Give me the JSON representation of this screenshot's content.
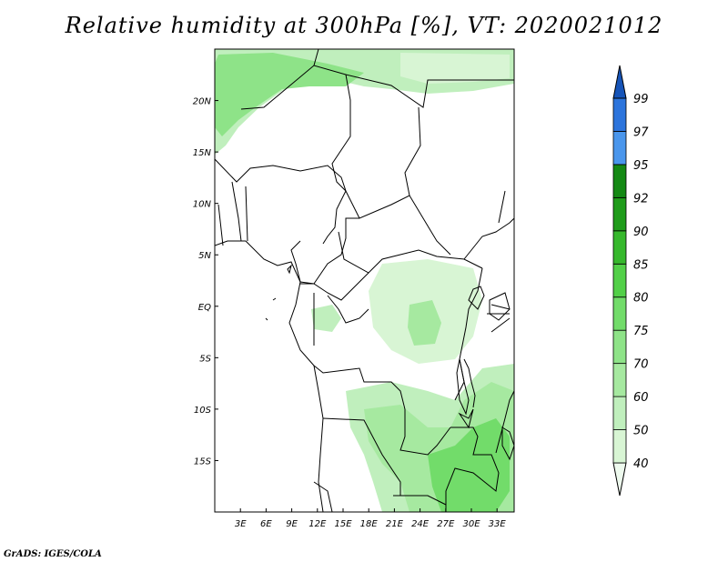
{
  "title": "Relative humidity at 300hPa [%], VT: 2020021012",
  "credit": "GrADS: IGES/COLA",
  "map": {
    "lon_range": [
      0,
      35
    ],
    "lat_range": [
      -20,
      25
    ],
    "lon_ticks": [
      3,
      6,
      9,
      12,
      15,
      18,
      21,
      24,
      27,
      30,
      33
    ],
    "lon_tick_labels": [
      "3E",
      "6E",
      "9E",
      "12E",
      "15E",
      "18E",
      "21E",
      "24E",
      "27E",
      "30E",
      "33E"
    ],
    "lat_ticks": [
      20,
      15,
      10,
      5,
      0,
      -5,
      -10,
      -15
    ],
    "lat_tick_labels": [
      "20N",
      "15N",
      "10N",
      "5N",
      "EQ",
      "5S",
      "10S",
      "15S"
    ]
  },
  "colorbar": {
    "levels": [
      40,
      50,
      60,
      70,
      75,
      80,
      85,
      90,
      92,
      95,
      97,
      99
    ],
    "level_labels": [
      "40",
      "50",
      "60",
      "70",
      "75",
      "80",
      "85",
      "90",
      "92",
      "95",
      "97",
      "99"
    ],
    "colors": [
      "#eefaee",
      "#d8f5d4",
      "#c0efbd",
      "#a6e9a0",
      "#8ee388",
      "#72dc6a",
      "#52d048",
      "#36b82c",
      "#1f9c1a",
      "#148914",
      "#4a96ec",
      "#2c74dc",
      "#1654b8"
    ]
  }
}
